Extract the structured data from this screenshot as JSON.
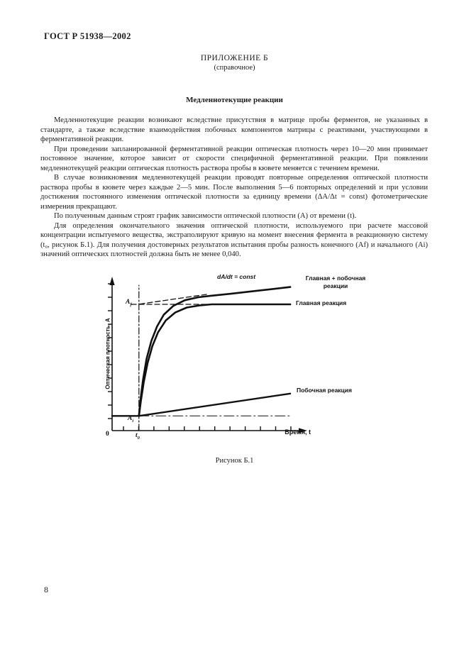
{
  "page": {
    "header": "ГОСТ Р 51938—2002",
    "page_number": "8"
  },
  "appendix": {
    "title": "ПРИЛОЖЕНИЕ Б",
    "subtitle": "(справочное)",
    "section_title": "Медленнотекущие реакции"
  },
  "paragraphs": [
    "Медленнотекущие реакции возникают вследствие присутствия в матрице пробы ферментов, не указанных в стандарте, а также вследствие взаимодействия побочных компонентов матрицы с реактивами, участвующими в ферментативной реакции.",
    "При проведении запланированной ферментативной реакции оптическая плотность через 10—20 мин принимает постоянное значение, которое зависит от скорости специфичной ферментативной реакции. При появлении медленнотекущей реакции оптическая плотность раствора пробы в кювете меняется с течением времени.",
    "В случае возникновения медленнотекущей реакции проводят повторные определения оптической плотности раствора пробы в кювете через каждые 2—5 мин. После выполнения 5—6 повторных определений и при условии достижения постоянного изменения оптической плотности за единицу времени (ΔA/Δt = const) фотометрические измерения прекращают.",
    "По полученным данным строят график зависимости оптической плотности (A) от времени (t).",
    "Для определения окончательного значения оптической плотности, используемого при расчете массовой концентрации испытуемого вещества, экстраполируют кривую на момент внесения фермента в реакционную систему (t₀, рисунок Б.1). Для получения достоверных результатов испытания пробы разность конечного (Аf) и начального (Аi) значений оптических плотностей должна быть не менее 0,040."
  ],
  "figure": {
    "caption": "Рисунок Б.1"
  },
  "chart_data": {
    "type": "line",
    "title": "Рисунок Б.1",
    "xlabel": "Время, t",
    "ylabel": "Оптическая плотность, А",
    "x_range": [
      0,
      1
    ],
    "y_range": [
      0,
      1
    ],
    "grid": false,
    "x_ticks": 12,
    "y_ticks": 11,
    "key_values": {
      "t0": 0.14,
      "Ai": 0.1,
      "Af": 0.86
    },
    "labels": {
      "origin": "0",
      "t0_base": "t",
      "t0_sub": "0",
      "af_base": "А",
      "af_sub": "f",
      "ai_base": "А",
      "ai_sub": "i",
      "rate": "dA/dt = const",
      "main_plus_side_line1": "Главная + побочная",
      "main_plus_side_line2": "реакции",
      "main": "Главная реакция",
      "side": "Побочная реакция"
    },
    "series": [
      {
        "name": "Главная реакция",
        "style": "curve",
        "points": [
          [
            0.14,
            0.1
          ],
          [
            0.15,
            0.2
          ],
          [
            0.165,
            0.33
          ],
          [
            0.185,
            0.46
          ],
          [
            0.21,
            0.575
          ],
          [
            0.24,
            0.67
          ],
          [
            0.28,
            0.75
          ],
          [
            0.33,
            0.805
          ],
          [
            0.39,
            0.838
          ],
          [
            0.46,
            0.853
          ],
          [
            0.52,
            0.86
          ],
          [
            0.93,
            0.86
          ]
        ]
      },
      {
        "name": "Главная + побочная реакции",
        "style": "curve",
        "points": [
          [
            0.14,
            0.1
          ],
          [
            0.148,
            0.21
          ],
          [
            0.162,
            0.35
          ],
          [
            0.18,
            0.49
          ],
          [
            0.205,
            0.61
          ],
          [
            0.235,
            0.71
          ],
          [
            0.27,
            0.79
          ],
          [
            0.32,
            0.85
          ],
          [
            0.38,
            0.888
          ],
          [
            0.45,
            0.908
          ],
          [
            0.52,
            0.919
          ],
          [
            0.62,
            0.932
          ],
          [
            0.75,
            0.951
          ],
          [
            0.93,
            0.978
          ]
        ]
      },
      {
        "name": "Побочная реакция",
        "style": "thick",
        "points": [
          [
            0.14,
            0.1
          ],
          [
            0.93,
            0.252
          ]
        ]
      },
      {
        "name": "Экстраполяция dA/dt = const",
        "style": "dashed",
        "points": [
          [
            0.145,
            0.862
          ],
          [
            0.5,
            0.929
          ]
        ]
      },
      {
        "name": "Уровень Af",
        "style": "dashed",
        "points": [
          [
            0.1,
            0.86
          ],
          [
            0.5,
            0.86
          ]
        ]
      },
      {
        "name": "Начальный уровень Ai",
        "style": "thick",
        "points": [
          [
            0.0,
            0.1
          ],
          [
            0.14,
            0.1
          ]
        ]
      },
      {
        "name": "Продолжение уровня Ai",
        "style": "thindashdot",
        "points": [
          [
            0.14,
            0.1
          ],
          [
            0.935,
            0.1
          ]
        ]
      },
      {
        "name": "Вертикаль t0",
        "style": "dashdot",
        "points": [
          [
            0.14,
            0.0
          ],
          [
            0.14,
            0.99
          ]
        ]
      }
    ]
  }
}
